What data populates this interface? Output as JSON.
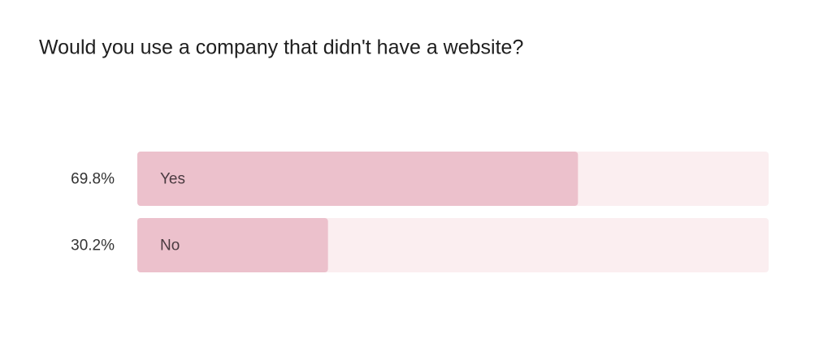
{
  "chart_data": {
    "type": "bar",
    "orientation": "horizontal",
    "title": "Would you use a company that didn't have a website?",
    "categories": [
      "Yes",
      "No"
    ],
    "values": [
      69.8,
      30.2
    ],
    "value_labels": [
      "69.8%",
      "30.2%"
    ],
    "xlim": [
      0,
      100
    ],
    "color": "#ecc1cc",
    "track_color": "#fbeef0"
  }
}
